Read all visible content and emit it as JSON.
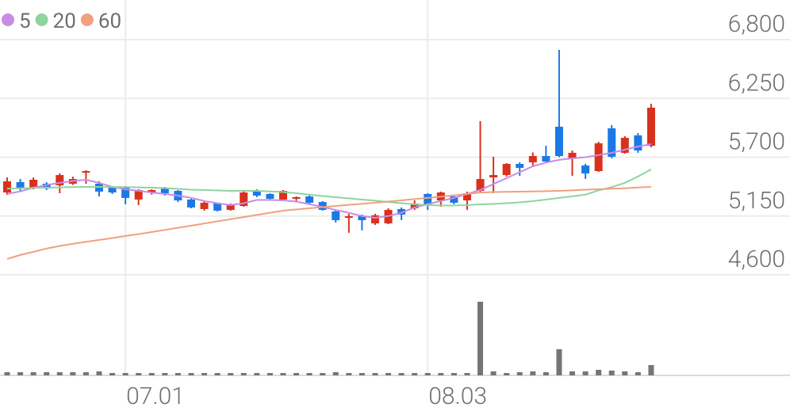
{
  "chart_data": {
    "type": "candlestick",
    "categories": [
      null,
      null,
      null,
      null,
      null,
      null,
      null,
      null,
      null,
      "07.01",
      null,
      null,
      null,
      null,
      null,
      null,
      null,
      null,
      null,
      null,
      null,
      null,
      null,
      null,
      null,
      null,
      null,
      null,
      null,
      null,
      null,
      null,
      "08.03",
      null,
      null,
      null,
      null,
      null,
      null,
      null,
      null,
      null,
      null,
      null,
      null,
      null,
      null,
      null,
      null,
      null
    ],
    "open": [
      5370,
      5467,
      5415,
      5452,
      5437,
      5452,
      5563,
      5452,
      5415,
      5415,
      5304,
      5370,
      5407,
      5385,
      5304,
      5215,
      5267,
      5207,
      5244,
      5385,
      5356,
      5304,
      5311,
      5333,
      5281,
      5193,
      5133,
      5148,
      5081,
      5081,
      5215,
      5222,
      5356,
      5296,
      5333,
      5296,
      5385,
      5511,
      5533,
      5637,
      5652,
      5711,
      5985,
      5689,
      5622,
      5570,
      5970,
      5741,
      5904,
      5807
    ],
    "high": [
      5511,
      5496,
      5511,
      5467,
      5548,
      5518,
      5578,
      5474,
      5430,
      5430,
      5400,
      5400,
      5422,
      5393,
      5311,
      5289,
      5274,
      5267,
      5378,
      5400,
      5363,
      5393,
      5333,
      5348,
      5289,
      5207,
      5170,
      5163,
      5170,
      5222,
      5230,
      5296,
      5363,
      5378,
      5341,
      5378,
      6037,
      5704,
      5644,
      5652,
      5744,
      5807,
      6704,
      5763,
      5637,
      5844,
      6000,
      5896,
      5926,
      6200
    ],
    "low": [
      5348,
      5385,
      5400,
      5393,
      5363,
      5440,
      5452,
      5333,
      5356,
      5260,
      5252,
      5350,
      5341,
      5280,
      5222,
      5200,
      5193,
      5200,
      5237,
      5326,
      5304,
      5296,
      5289,
      5259,
      5200,
      5089,
      4993,
      5015,
      5067,
      5074,
      5111,
      5207,
      5207,
      5237,
      5259,
      5207,
      5363,
      5363,
      5518,
      5526,
      5622,
      5652,
      5700,
      5526,
      5496,
      5563,
      5689,
      5733,
      5741,
      5793
    ],
    "close": [
      5474,
      5407,
      5489,
      5407,
      5533,
      5496,
      5570,
      5378,
      5370,
      5319,
      5393,
      5393,
      5363,
      5296,
      5230,
      5274,
      5200,
      5259,
      5370,
      5341,
      5311,
      5385,
      5326,
      5274,
      5207,
      5111,
      5148,
      5111,
      5156,
      5207,
      5163,
      5267,
      5259,
      5370,
      5274,
      5363,
      5496,
      5533,
      5637,
      5600,
      5711,
      5659,
      5711,
      5741,
      5548,
      5830,
      5704,
      5881,
      5763,
      6163
    ],
    "volume": [
      4,
      4,
      4,
      4,
      4,
      4,
      4,
      5,
      3,
      3,
      3,
      3,
      3,
      3,
      3,
      3,
      3,
      3,
      3,
      3,
      3,
      3,
      3,
      3,
      3,
      4,
      3,
      3,
      3,
      3,
      3,
      3,
      3,
      3,
      3,
      3,
      93,
      5,
      3,
      4,
      5,
      4,
      33,
      5,
      5,
      7,
      6,
      5,
      4,
      13
    ],
    "up_color": "#d9311d",
    "down_color": "#1a79e6",
    "volume_color": "#757575",
    "series": [
      {
        "name": "5",
        "color": "#c98be6",
        "values": [
          5356,
          5380,
          5415,
          5440,
          5460,
          5478,
          5489,
          5460,
          5422,
          5400,
          5385,
          5370,
          5356,
          5341,
          5320,
          5290,
          5270,
          5252,
          5270,
          5300,
          5300,
          5296,
          5285,
          5260,
          5235,
          5207,
          5180,
          5150,
          5133,
          5150,
          5180,
          5230,
          5260,
          5290,
          5319,
          5356,
          5393,
          5450,
          5504,
          5560,
          5615,
          5650,
          5675,
          5689,
          5700,
          5720,
          5741,
          5770,
          5800,
          5822
        ]
      },
      {
        "name": "20",
        "color": "#8fd4a0",
        "values": [
          5407,
          5410,
          5413,
          5415,
          5418,
          5420,
          5422,
          5422,
          5420,
          5420,
          5418,
          5415,
          5411,
          5404,
          5396,
          5393,
          5389,
          5385,
          5385,
          5385,
          5380,
          5374,
          5363,
          5350,
          5337,
          5326,
          5315,
          5304,
          5293,
          5281,
          5270,
          5259,
          5252,
          5248,
          5248,
          5252,
          5259,
          5263,
          5270,
          5278,
          5289,
          5304,
          5319,
          5333,
          5350,
          5390,
          5420,
          5460,
          5520,
          5585
        ]
      },
      {
        "name": "60",
        "color": "#f2a07f",
        "values": [
          4748,
          4785,
          4815,
          4845,
          4870,
          4890,
          4908,
          4926,
          4944,
          4963,
          4981,
          5000,
          5020,
          5040,
          5059,
          5080,
          5100,
          5120,
          5140,
          5160,
          5180,
          5200,
          5211,
          5222,
          5233,
          5244,
          5255,
          5264,
          5274,
          5285,
          5296,
          5308,
          5319,
          5330,
          5344,
          5356,
          5370,
          5374,
          5376,
          5378,
          5380,
          5382,
          5385,
          5390,
          5396,
          5400,
          5405,
          5410,
          5416,
          5422
        ]
      }
    ],
    "ylim": [
      4600,
      6800
    ],
    "yticks": [
      {
        "value": 4600,
        "label": "4,600"
      },
      {
        "value": 5150,
        "label": "5,150"
      },
      {
        "value": 5700,
        "label": "5,700"
      },
      {
        "value": 6250,
        "label": "6,250"
      },
      {
        "value": 6800,
        "label": "6,800"
      }
    ],
    "grid": true
  }
}
